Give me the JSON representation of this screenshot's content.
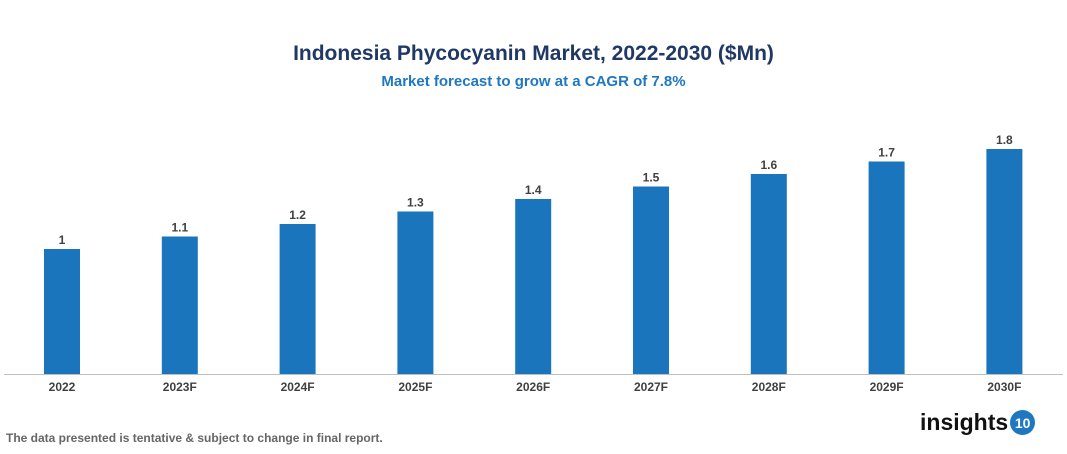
{
  "chart_data": {
    "type": "bar",
    "title": "Indonesia Phycocyanin Market, 2022-2030 ($Mn)",
    "subtitle": "Market forecast to grow at a CAGR of 7.8%",
    "categories": [
      "2022",
      "2023F",
      "2024F",
      "2025F",
      "2026F",
      "2027F",
      "2028F",
      "2029F",
      "2030F"
    ],
    "values": [
      1,
      1.1,
      1.2,
      1.3,
      1.4,
      1.5,
      1.6,
      1.7,
      1.8
    ],
    "data_labels": [
      "1",
      "1.1",
      "1.2",
      "1.3",
      "1.4",
      "1.5",
      "1.6",
      "1.7",
      "1.8"
    ],
    "xlabel": "",
    "ylabel": "",
    "ylim": [
      0,
      1.8
    ],
    "grid": false,
    "bar_color": "#1a75bd"
  },
  "footer": {
    "note": "The data presented is tentative & subject to change in final report.",
    "logo_text": "insights",
    "logo_number": "10"
  }
}
